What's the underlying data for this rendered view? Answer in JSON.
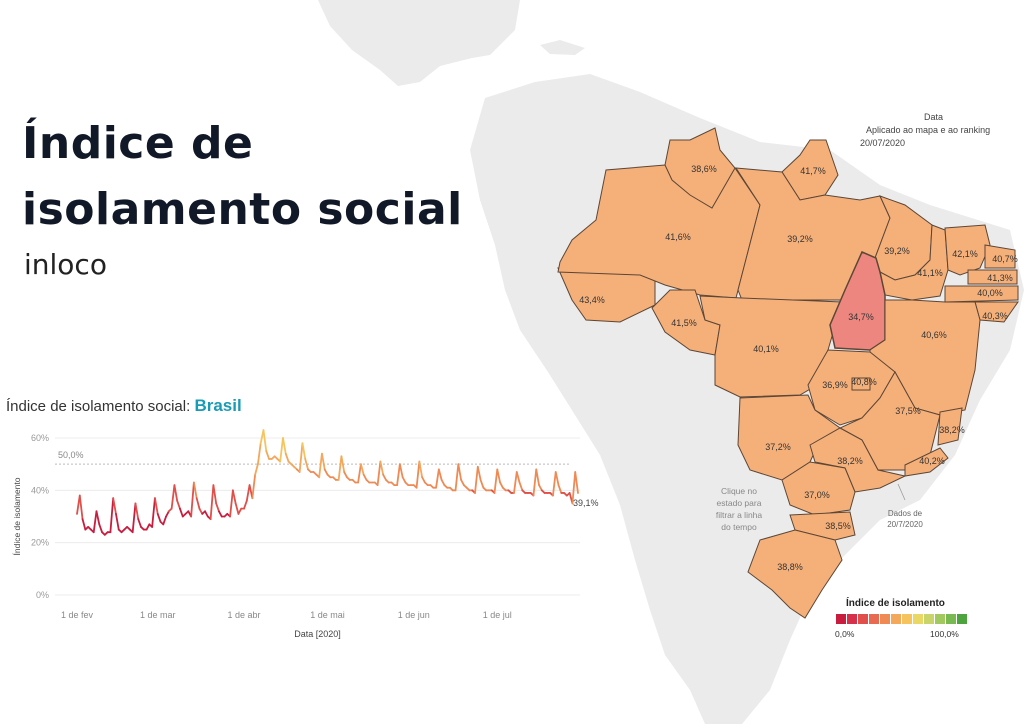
{
  "header": {
    "title_line1": "Índice de",
    "title_line2": "isolamento social",
    "brand": "inloco"
  },
  "chart_heading": {
    "label": "Índice de isolamento social:",
    "region": "Brasil"
  },
  "map_info": {
    "line1": "Data",
    "line2": "Aplicado ao mapa e ao ranking",
    "line3": "20/07/2020"
  },
  "map_hint": "Clique no estado para filtrar a linha do tempo",
  "data_note": "Dados de 20/7/2020",
  "legend": {
    "title": "Índice de isolamento",
    "min": "0,0%",
    "max": "100,0%",
    "colors": [
      "#c81d3f",
      "#d7304a",
      "#e04f4a",
      "#e86a50",
      "#ef8a55",
      "#f3a85c",
      "#f5c45e",
      "#e9d766",
      "#c9d46a",
      "#a2c95f",
      "#78b951",
      "#4da33d"
    ]
  },
  "state_colors": {
    "default": "#f5b07a",
    "highlight": "#ee8680",
    "border": "#5c4636"
  },
  "state_labels": [
    {
      "state": "RR",
      "label": "38,6%"
    },
    {
      "state": "AP",
      "label": "41,7%"
    },
    {
      "state": "AM",
      "label": "41,6%"
    },
    {
      "state": "PA",
      "label": "39,2%"
    },
    {
      "state": "MA",
      "label": "39,2%"
    },
    {
      "state": "CE",
      "label": "42,1%"
    },
    {
      "state": "RN",
      "label": "40,7%"
    },
    {
      "state": "PB",
      "label": "41,3%"
    },
    {
      "state": "PE",
      "label": "40,0%"
    },
    {
      "state": "AL",
      "label": "40,3%"
    },
    {
      "state": "PI",
      "label": "41,1%"
    },
    {
      "state": "AC",
      "label": "43,4%"
    },
    {
      "state": "RO",
      "label": "41,5%"
    },
    {
      "state": "TO",
      "label": "34,7%"
    },
    {
      "state": "MT",
      "label": "40,1%"
    },
    {
      "state": "BA",
      "label": "40,6%"
    },
    {
      "state": "GO",
      "label": "36,9%"
    },
    {
      "state": "DF",
      "label": "40,8%"
    },
    {
      "state": "MG",
      "label": "37,5%"
    },
    {
      "state": "ES",
      "label": "38,2%"
    },
    {
      "state": "MS",
      "label": "37,2%"
    },
    {
      "state": "SP",
      "label": "38,2%"
    },
    {
      "state": "RJ",
      "label": "40,2%"
    },
    {
      "state": "PR",
      "label": "37,0%"
    },
    {
      "state": "SC",
      "label": "38,5%"
    },
    {
      "state": "RS",
      "label": "38,8%"
    }
  ],
  "chart_data": {
    "type": "line",
    "title": "Índice de isolamento social: Brasil",
    "xlabel": "Data [2020]",
    "ylabel": "Índice de isolamento",
    "ylim": [
      0,
      60
    ],
    "yticks": [
      "0%",
      "20%",
      "40%",
      "60%"
    ],
    "xticks": [
      {
        "day": 0,
        "label": "1 de fev"
      },
      {
        "day": 29,
        "label": "1 de mar"
      },
      {
        "day": 60,
        "label": "1 de abr"
      },
      {
        "day": 90,
        "label": "1 de mai"
      },
      {
        "day": 121,
        "label": "1 de jun"
      },
      {
        "day": 151,
        "label": "1 de jul"
      }
    ],
    "reference": {
      "value": 50,
      "label": "50,0%"
    },
    "last_label": "39,1%",
    "grid": true,
    "series": [
      {
        "values": [
          31,
          38,
          29,
          25,
          26,
          25,
          24,
          32,
          27,
          24,
          23,
          24,
          24,
          37,
          31,
          25,
          24,
          25,
          26,
          25,
          24,
          35,
          29,
          26,
          25,
          25,
          27,
          26,
          37,
          31,
          28,
          27,
          30,
          32,
          33,
          42,
          36,
          33,
          30,
          31,
          32,
          30,
          43,
          37,
          33,
          31,
          32,
          30,
          29,
          42,
          35,
          32,
          30,
          30,
          31,
          30,
          40,
          35,
          31,
          33,
          33,
          36,
          42,
          37,
          46,
          50,
          58,
          63,
          55,
          52,
          52,
          53,
          52,
          51,
          60,
          54,
          51,
          50,
          49,
          48,
          47,
          58,
          52,
          48,
          47,
          47,
          46,
          45,
          54,
          48,
          46,
          45,
          45,
          44,
          44,
          53,
          47,
          45,
          44,
          44,
          43,
          43,
          50,
          46,
          44,
          43,
          43,
          43,
          42,
          51,
          46,
          44,
          43,
          43,
          42,
          42,
          50,
          45,
          43,
          42,
          42,
          42,
          41,
          51,
          45,
          43,
          42,
          42,
          41,
          41,
          48,
          44,
          42,
          41,
          41,
          40,
          40,
          50,
          44,
          42,
          41,
          40,
          40,
          39,
          49,
          44,
          41,
          40,
          40,
          40,
          39,
          48,
          43,
          41,
          40,
          40,
          39,
          39,
          47,
          43,
          40,
          39,
          39,
          39,
          38,
          48,
          42,
          40,
          39,
          39,
          39,
          38,
          47,
          42,
          39,
          39,
          38,
          39,
          35,
          47,
          39
        ]
      }
    ]
  }
}
